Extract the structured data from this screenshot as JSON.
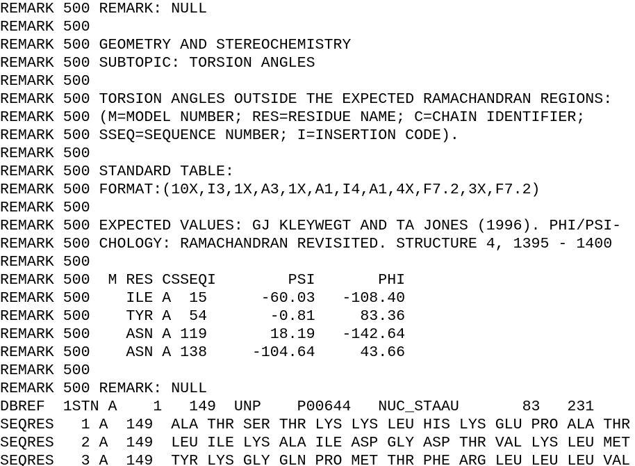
{
  "lines": [
    "REMARK 500 REMARK: NULL",
    "REMARK 500",
    "REMARK 500 GEOMETRY AND STEREOCHEMISTRY",
    "REMARK 500 SUBTOPIC: TORSION ANGLES",
    "REMARK 500",
    "REMARK 500 TORSION ANGLES OUTSIDE THE EXPECTED RAMACHANDRAN REGIONS:",
    "REMARK 500 (M=MODEL NUMBER; RES=RESIDUE NAME; C=CHAIN IDENTIFIER;",
    "REMARK 500 SSEQ=SEQUENCE NUMBER; I=INSERTION CODE).",
    "REMARK 500",
    "REMARK 500 STANDARD TABLE:",
    "REMARK 500 FORMAT:(10X,I3,1X,A3,1X,A1,I4,A1,4X,F7.2,3X,F7.2)",
    "REMARK 500",
    "REMARK 500 EXPECTED VALUES: GJ KLEYWEGT AND TA JONES (1996). PHI/PSI-",
    "REMARK 500 CHOLOGY: RAMACHANDRAN REVISITED. STRUCTURE 4, 1395 - 1400",
    "REMARK 500",
    "REMARK 500  M RES CSSEQI        PSI       PHI",
    "REMARK 500    ILE A  15      -60.03   -108.40",
    "REMARK 500    TYR A  54       -0.81     83.36",
    "REMARK 500    ASN A 119       18.19   -142.64",
    "REMARK 500    ASN A 138     -104.64     43.66",
    "REMARK 500",
    "REMARK 500 REMARK: NULL",
    "DBREF  1STN A    1   149  UNP    P00644   NUC_STAAU       83   231",
    "SEQRES   1 A  149  ALA THR SER THR LYS LYS LEU HIS LYS GLU PRO ALA THR",
    "SEQRES   2 A  149  LEU ILE LYS ALA ILE ASP GLY ASP THR VAL LYS LEU MET",
    "SEQRES   3 A  149  TYR LYS GLY GLN PRO MET THR PHE ARG LEU LEU LEU VAL"
  ]
}
